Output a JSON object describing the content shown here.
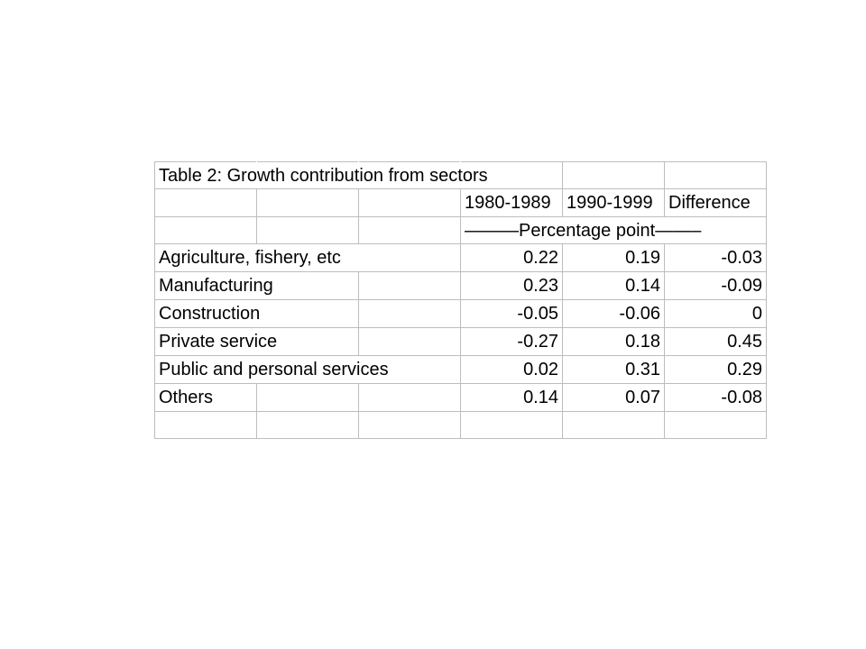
{
  "table": {
    "title": "Table 2: Growth contribution from sectors",
    "headers": {
      "col1": "1980-1989",
      "col2": "1990-1999",
      "col3": "Difference"
    },
    "unit_label": "———Percentage point——–",
    "rows": [
      {
        "label": "Agriculture, fishery, etc",
        "v1": "0.22",
        "v2": "0.19",
        "v3": "-0.03"
      },
      {
        "label": "Manufacturing",
        "v1": "0.23",
        "v2": "0.14",
        "v3": "-0.09"
      },
      {
        "label": "Construction",
        "v1": "-0.05",
        "v2": "-0.06",
        "v3": "0"
      },
      {
        "label": "Private service",
        "v1": "-0.27",
        "v2": "0.18",
        "v3": "0.45"
      },
      {
        "label": "Public and personal services",
        "v1": "0.02",
        "v2": "0.31",
        "v3": "0.29"
      },
      {
        "label": "Others",
        "v1": "0.14",
        "v2": "0.07",
        "v3": "-0.08"
      }
    ]
  }
}
